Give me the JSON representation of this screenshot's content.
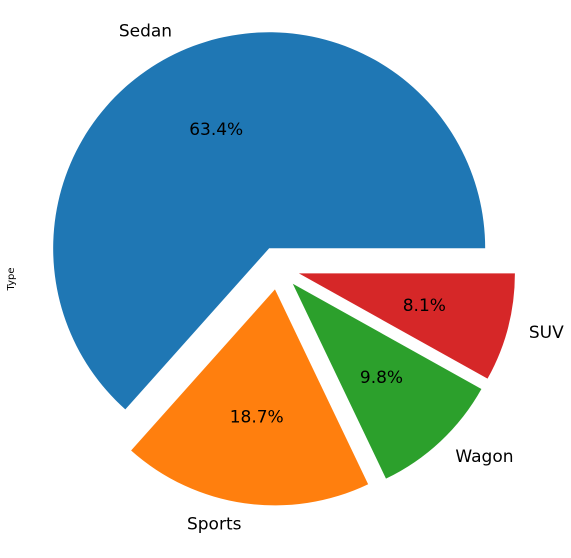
{
  "chart_data": {
    "type": "pie",
    "ylabel": "Type",
    "slices": [
      {
        "label": "Sedan",
        "value": 63.4,
        "pct_label": "63.4%",
        "color": "#1f77b4",
        "exploded": true
      },
      {
        "label": "Sports",
        "value": 18.7,
        "pct_label": "18.7%",
        "color": "#ff7f0e",
        "exploded": true
      },
      {
        "label": "Wagon",
        "value": 9.8,
        "pct_label": "9.8%",
        "color": "#2ca02c",
        "exploded": true
      },
      {
        "label": "SUV",
        "value": 8.1,
        "pct_label": "8.1%",
        "color": "#d62728",
        "exploded": true
      }
    ],
    "start_angle_deg": 0,
    "direction": "counterclockwise",
    "legend": "none"
  }
}
